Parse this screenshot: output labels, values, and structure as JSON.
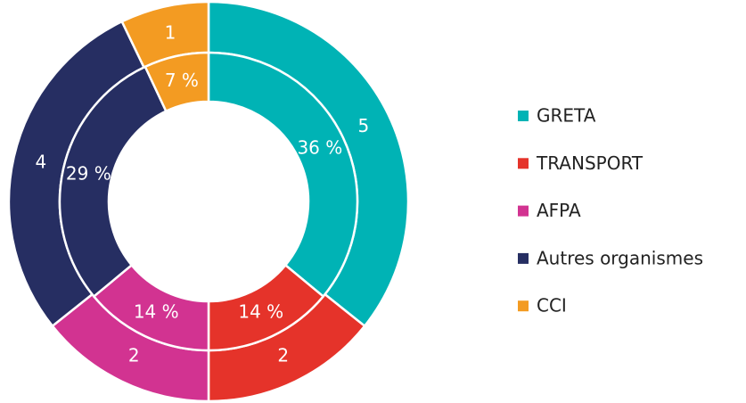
{
  "chart_data": {
    "type": "donut",
    "categories": [
      "GRETA",
      "TRANSPORT",
      "AFPA",
      "Autres organismes",
      "CCI"
    ],
    "values": [
      5,
      2,
      2,
      4,
      1
    ],
    "percentages": [
      36,
      14,
      14,
      29,
      7
    ],
    "percentage_labels": [
      "36 %",
      "14 %",
      "14 %",
      "29 %",
      "7 %"
    ],
    "colors": [
      "#00b3b5",
      "#e5332a",
      "#d23391",
      "#262e62",
      "#f39b22"
    ],
    "legend": "right"
  }
}
